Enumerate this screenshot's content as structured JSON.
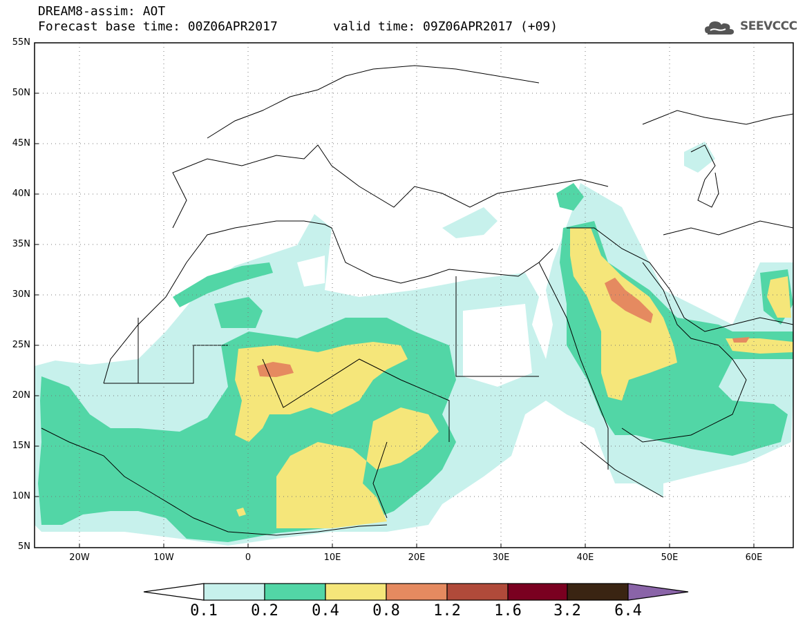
{
  "header": {
    "title": "DREAM8-assim: AOT",
    "base_time": "Forecast base time: 00Z06APR2017",
    "valid_time": "valid time: 09Z06APR2017 (+09)",
    "logo_text": "SEEVCCC"
  },
  "map": {
    "lon_range": [
      -25,
      65
    ],
    "lat_range": [
      5,
      55
    ],
    "lat_ticks": [
      "55N",
      "50N",
      "45N",
      "40N",
      "35N",
      "30N",
      "25N",
      "20N",
      "15N",
      "10N",
      "5N"
    ],
    "lon_ticks": [
      "20W",
      "10W",
      "0",
      "10E",
      "20E",
      "30E",
      "40E",
      "50E",
      "60E"
    ],
    "grid": "dotted"
  },
  "legend": {
    "labels": [
      "0.1",
      "0.2",
      "0.4",
      "0.8",
      "1.2",
      "1.6",
      "3.2",
      "6.4"
    ],
    "colors": [
      "#ffffff",
      "#c7f1ec",
      "#52d6a6",
      "#f5e67a",
      "#e58a60",
      "#b04a3a",
      "#7a0020",
      "#3a2412",
      "#8a64a8"
    ]
  }
}
